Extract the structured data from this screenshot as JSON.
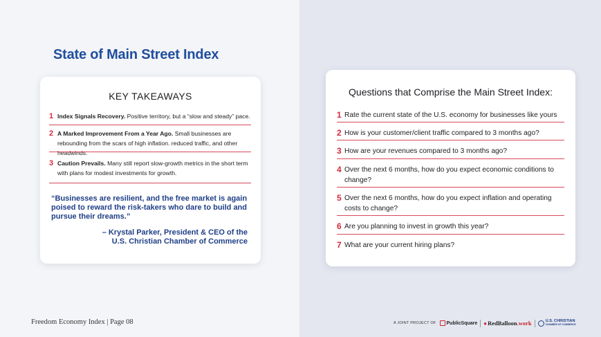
{
  "page": {
    "title": "State of Main Street Index",
    "footer_left": "Freedom Economy Index | Page 08",
    "footer_joint": "A JOINT PROJECT OF",
    "logos": {
      "publicsquare": "PublicSquare",
      "redballoon_main": "RedBalloon",
      "redballoon_suffix": ".work",
      "usc_line1": "U.S. CHRISTIAN",
      "usc_line2": "CHAMBER OF COMMERCE"
    }
  },
  "takeaways": {
    "title": "KEY TAKEAWAYS",
    "items": [
      {
        "num": "1",
        "lead": "Index Signals Recovery.",
        "text": "  Positive territory, but a “slow and steady” pace."
      },
      {
        "num": "2",
        "lead": "A Marked Improvement From a Year Ago.",
        "text": " Small businesses are rebounding from the scars  of high inflation. reduced traffic, and other headwinds."
      },
      {
        "num": "3",
        "lead": "Caution Prevails.",
        "text": " Many still report slow-growth metrics in the short term with plans for modest investments for growth."
      }
    ],
    "quote": "“Businesses are resilient, and the free market is again poised to reward the risk-takers who dare to build and pursue their dreams.”",
    "attribution_line1": "– Krystal Parker, President & CEO of the",
    "attribution_line2": "U.S. Christian Chamber of Commerce"
  },
  "questions": {
    "title": "Questions that Comprise the Main Street Index:",
    "items": [
      {
        "num": "1",
        "text": "Rate the current state of the U.S. economy for businesses like yours"
      },
      {
        "num": "2",
        "text": "How is your customer/client traffic compared to 3 months ago?"
      },
      {
        "num": "3",
        "text": "How are your revenues compared to 3 months ago?"
      },
      {
        "num": "4",
        "text": "Over the next 6 months, how do you expect economic conditions to change?"
      },
      {
        "num": "5",
        "text": "Over the next 6 months, how do you expect inflation and operating costs to change?"
      },
      {
        "num": "6",
        "text": "Are you planning to invest in growth this year?"
      },
      {
        "num": "7",
        "text": "What are your current hiring plans?"
      }
    ]
  },
  "colors": {
    "accent_red": "#d42a3a",
    "title_blue": "#1f4e9e",
    "quote_blue": "#1f3f86"
  }
}
